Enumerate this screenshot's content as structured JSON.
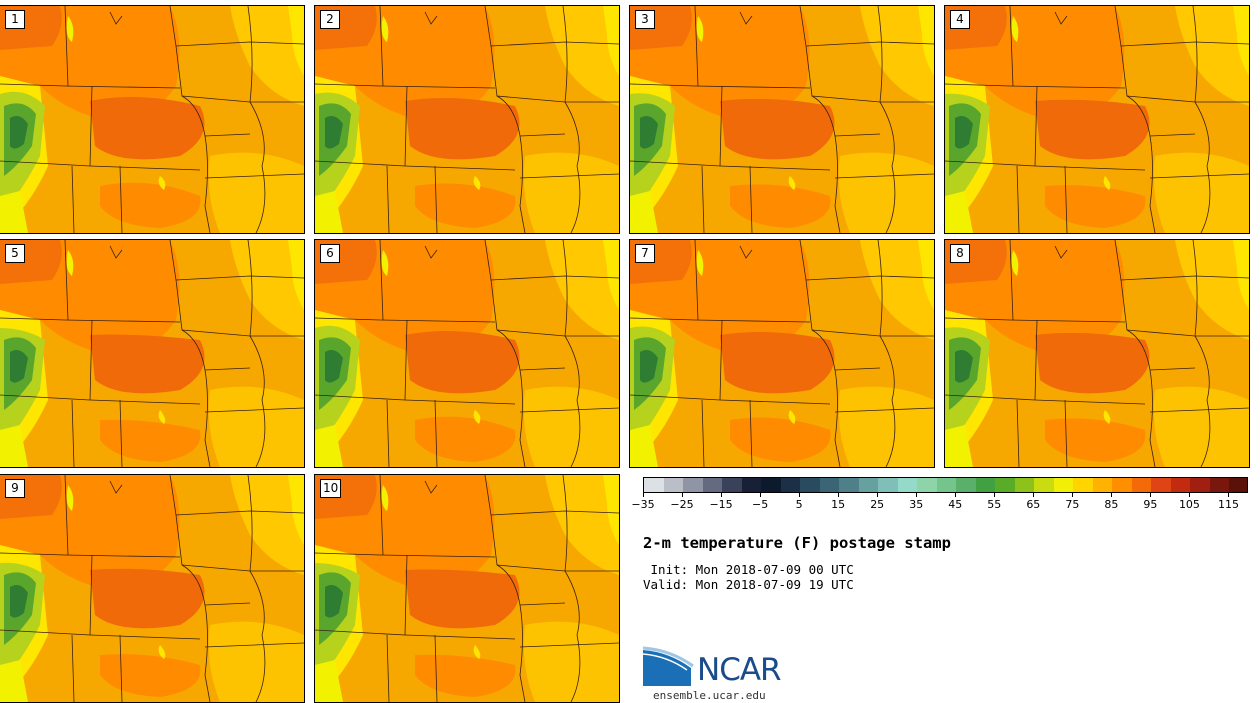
{
  "panels": [
    "1",
    "2",
    "3",
    "4",
    "5",
    "6",
    "7",
    "8",
    "9",
    "10"
  ],
  "colorbar": {
    "ticks": [
      "-35",
      "-25",
      "-15",
      "-5",
      "5",
      "15",
      "25",
      "35",
      "45",
      "55",
      "65",
      "75",
      "85",
      "95",
      "105",
      "115"
    ],
    "range": [
      -35,
      120
    ],
    "step": 5,
    "colors": [
      "#dde1e6",
      "#b9bec7",
      "#8f95a5",
      "#646b80",
      "#3a425b",
      "#182038",
      "#0d1a2e",
      "#1b3047",
      "#2a4a5f",
      "#3b6475",
      "#4f8089",
      "#66a09f",
      "#7fbfb7",
      "#95d9c8",
      "#8fd3a9",
      "#75c48c",
      "#5ab06b",
      "#41a041",
      "#5aab28",
      "#8dc21a",
      "#c9dc0f",
      "#f0ef05",
      "#ffd400",
      "#ffb300",
      "#ff8e00",
      "#f46a08",
      "#e04414",
      "#c22b10",
      "#a01f10",
      "#7a170d",
      "#5a1108"
    ]
  },
  "title": "2-m temperature (F) postage stamp",
  "init_line": " Init: Mon 2018-07-09 00 UTC",
  "valid_line": "Valid: Mon 2018-07-09 19 UTC",
  "logo_text": "NCAR",
  "website": "ensemble.ucar.edu",
  "map_colors": {
    "base": "#f7a800",
    "warm": "#ff8c00",
    "hot": "#f06a0a",
    "mild": "#ffc800",
    "cool": "#ffe600",
    "cold": "#f2f200",
    "mountain_light": "#b7d21c",
    "mountain_dark": "#5aa62c",
    "peak": "#2e7d32",
    "border": "#3a2010"
  }
}
